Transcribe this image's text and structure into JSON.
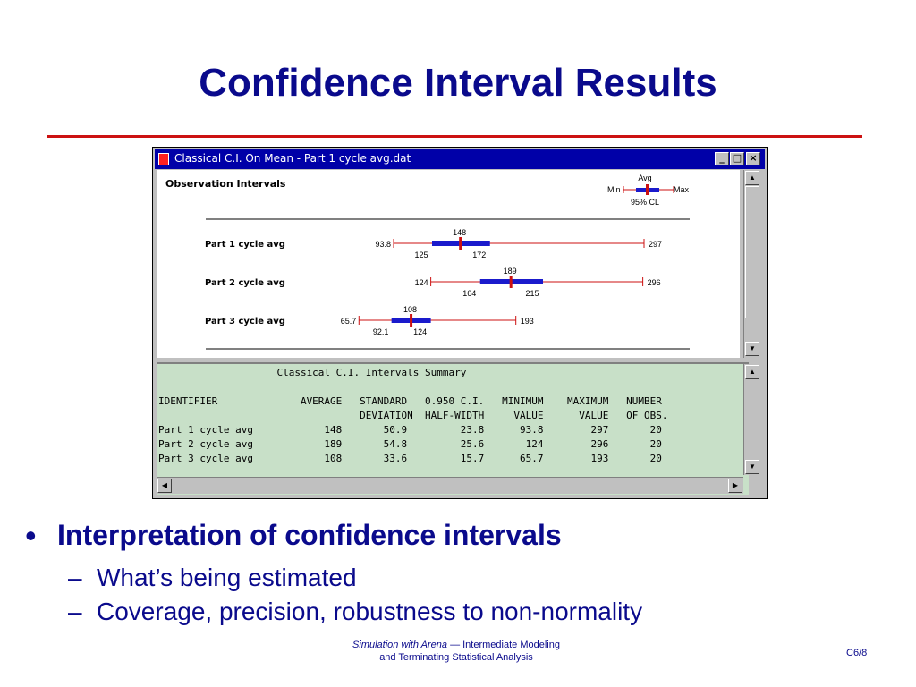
{
  "slide": {
    "title": "Confidence Interval Results",
    "bullet": "Interpretation of confidence intervals",
    "subbullets": [
      "What’s being estimated",
      "Coverage, precision, robustness to non-normality"
    ],
    "footer_italic": "Simulation with Arena",
    "footer_rest1": " — Intermediate Modeling",
    "footer_line2": "and Terminating Statistical Analysis",
    "page": "C6/8"
  },
  "window": {
    "title": "Classical C.I. On Mean - Part 1 cycle avg.dat",
    "btn_min": "_",
    "btn_max": "□",
    "btn_close": "×"
  },
  "observation": {
    "heading": "Observation Intervals",
    "legend": {
      "avg": "Avg",
      "min": "Min",
      "max": "Max",
      "cl": "95% CL"
    },
    "rows": [
      {
        "label": "Part 1 cycle avg",
        "min": "93.8",
        "avg": "148",
        "ci_low": "125",
        "ci_high": "172",
        "max": "297"
      },
      {
        "label": "Part 2 cycle avg",
        "min": "124",
        "avg": "189",
        "ci_low": "164",
        "ci_high": "215",
        "max": "296"
      },
      {
        "label": "Part 3 cycle avg",
        "min": "65.7",
        "avg": "108",
        "ci_low": "92.1",
        "ci_high": "124",
        "max": "193"
      }
    ]
  },
  "summary": {
    "title": "                    Classical C.I. Intervals Summary",
    "header1": "IDENTIFIER              AVERAGE   STANDARD   0.950 C.I.   MINIMUM    MAXIMUM   NUMBER",
    "header2": "                                  DEVIATION  HALF-WIDTH     VALUE      VALUE   OF OBS.",
    "rows": [
      "Part 1 cycle avg            148       50.9         23.8      93.8        297       20",
      "Part 2 cycle avg            189       54.8         25.6       124        296       20",
      "Part 3 cycle avg            108       33.6         15.7      65.7        193       20"
    ]
  },
  "icons": {
    "scroll_up": "▲",
    "scroll_down": "▼",
    "scroll_left": "◀",
    "scroll_right": "▶",
    "bullet": "•",
    "dash": "–"
  },
  "colors": {
    "title": "#0a0a8c",
    "rule": "#cc1111",
    "titlebar": "#0000a8",
    "ci_bar": "#1a1acc",
    "range_line": "#cc1111",
    "summary_bg": "#c8e0c8"
  }
}
